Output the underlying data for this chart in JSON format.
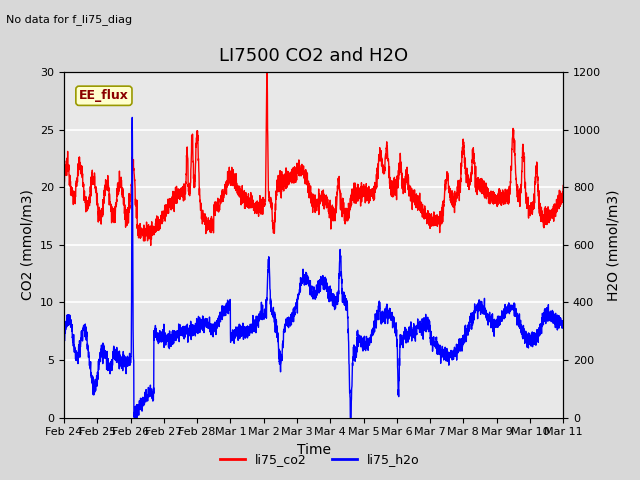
{
  "title": "LI7500 CO2 and H2O",
  "top_left_text": "No data for f_li75_diag",
  "xlabel": "Time",
  "ylabel_left": "CO2 (mmol/m3)",
  "ylabel_right": "H2O (mmol/m3)",
  "ylim_left": [
    0,
    30
  ],
  "ylim_right": [
    0,
    1200
  ],
  "yticks_left": [
    0,
    5,
    10,
    15,
    20,
    25,
    30
  ],
  "yticks_right": [
    0,
    200,
    400,
    600,
    800,
    1000,
    1200
  ],
  "xtick_labels": [
    "Feb 24",
    "Feb 25",
    "Feb 26",
    "Feb 27",
    "Feb 28",
    "Mar 1",
    "Mar 2",
    "Mar 3",
    "Mar 4",
    "Mar 5",
    "Mar 6",
    "Mar 7",
    "Mar 8",
    "Mar 9",
    "Mar 10",
    "Mar 11"
  ],
  "annotation_box": "EE_flux",
  "legend_labels": [
    "li75_co2",
    "li75_h2o"
  ],
  "co2_color": "red",
  "h2o_color": "blue",
  "bg_color": "#d8d8d8",
  "plot_bg_color": "#e8e8e8",
  "grid_color": "white",
  "title_fontsize": 13,
  "label_fontsize": 10,
  "tick_fontsize": 8,
  "line_width": 1.0
}
